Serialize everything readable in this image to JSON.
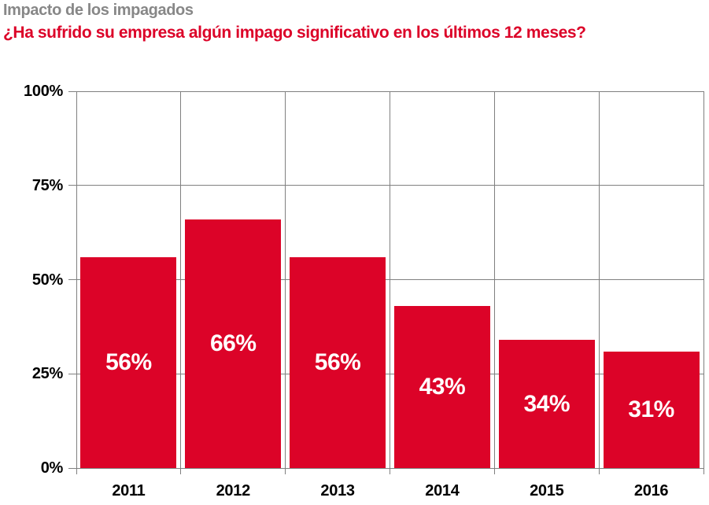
{
  "header": {
    "title": "Impacto de los impagados",
    "subtitle": "¿Ha sufrido su empresa algún impago significativo en los últimos 12 meses?"
  },
  "colors": {
    "bar": "#DC0328",
    "title_gray": "#878787",
    "subtitle_red": "#DC0328",
    "gridline": "#808080",
    "axis_text": "#000000",
    "bar_label": "#FFFFFF"
  },
  "chart_data": {
    "type": "bar",
    "title": "Impacto de los impagados",
    "subtitle": "¿Ha sufrido su empresa algún impago significativo en los últimos 12 meses?",
    "categories": [
      "2011",
      "2012",
      "2013",
      "2014",
      "2015",
      "2016"
    ],
    "values": [
      56,
      66,
      56,
      43,
      34,
      31
    ],
    "bar_labels": [
      "56%",
      "66%",
      "56%",
      "43%",
      "34%",
      "31%"
    ],
    "xlabel": "",
    "ylabel": "",
    "ylim": [
      0,
      100
    ],
    "yticks": [
      {
        "value": 0,
        "label": "0%"
      },
      {
        "value": 25,
        "label": "25%"
      },
      {
        "value": 50,
        "label": "50%"
      },
      {
        "value": 75,
        "label": "75%"
      },
      {
        "value": 100,
        "label": "100%"
      }
    ],
    "grid": "both",
    "legend": "none",
    "bar_color": "#DC0328",
    "bar_label_position": "center-inside"
  }
}
